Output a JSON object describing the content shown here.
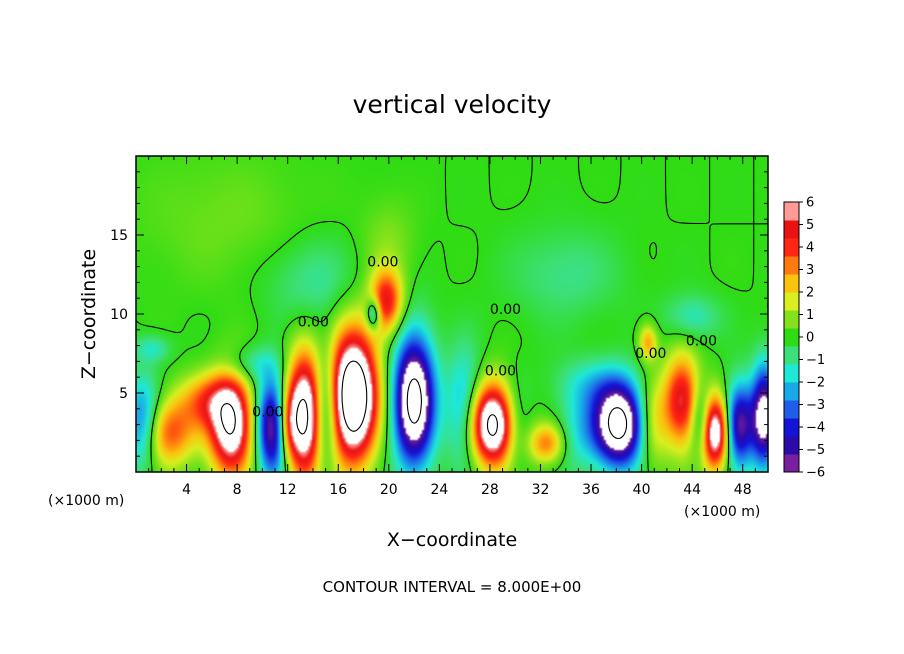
{
  "chart_data": {
    "type": "heatmap",
    "title": "vertical velocity",
    "xlabel": "X−coordinate",
    "ylabel": "Z−coordinate",
    "x_unit_label": "(×1000 m)",
    "x_unit_label_right": "(×1000 m)",
    "xlim": [
      0,
      50
    ],
    "ylim": [
      0,
      20
    ],
    "x_ticks": [
      4,
      8,
      12,
      16,
      20,
      24,
      28,
      32,
      36,
      40,
      44,
      48
    ],
    "y_ticks": [
      5,
      10,
      15
    ],
    "x_minor_step": 1,
    "y_minor_step": 1,
    "contour_interval_text": "CONTOUR INTERVAL = 8.000E+00",
    "contour_labels": [
      {
        "text": "0.00",
        "x": 12.8,
        "y": 9.2
      },
      {
        "text": "0.00",
        "x": 27.6,
        "y": 6.1
      },
      {
        "text": "0.00",
        "x": 28.0,
        "y": 10.0
      },
      {
        "text": "0.00",
        "x": 18.3,
        "y": 13.0
      },
      {
        "text": "0.00",
        "x": 9.2,
        "y": 3.5
      },
      {
        "text": "0.00",
        "x": 39.5,
        "y": 7.2
      },
      {
        "text": "0.00",
        "x": 43.5,
        "y": 8.0
      }
    ],
    "colorbar": {
      "min": -6,
      "max": 6,
      "ticks": [
        6,
        5,
        4,
        3,
        2,
        1,
        0,
        "−1",
        "−2",
        "−3",
        "−4",
        "−5",
        "−6"
      ],
      "colors": [
        "#7a1fa0",
        "#2a0aa8",
        "#1414d8",
        "#1f5ee8",
        "#19a8e8",
        "#1ee8d8",
        "#3ce07a",
        "#2fdc14",
        "#84e21c",
        "#d9ef1e",
        "#fbc20e",
        "#ff7a0e",
        "#ff2614",
        "#e81414",
        "#ff9a96"
      ]
    },
    "features": [
      {
        "x": 2.5,
        "z": 2.5,
        "w": 4.0,
        "sx": 1.6,
        "sz": 1.5
      },
      {
        "x": 7.5,
        "z": 3.0,
        "w": 8.0,
        "sx": 1.2,
        "sz": 2.2
      },
      {
        "x": 5.5,
        "z": 4.5,
        "w": 3.0,
        "sx": 1.5,
        "sz": 1.2
      },
      {
        "x": 0.5,
        "z": 3.0,
        "w": -4.0,
        "sx": 1.0,
        "sz": 2.0
      },
      {
        "x": 10.8,
        "z": 2.8,
        "w": -6.5,
        "sx": 0.9,
        "sz": 2.2
      },
      {
        "x": 13.3,
        "z": 3.5,
        "w": 8.5,
        "sx": 1.0,
        "sz": 2.8
      },
      {
        "x": 12.0,
        "z": 3.0,
        "w": 3.0,
        "sx": 0.6,
        "sz": 1.5
      },
      {
        "x": 15.0,
        "z": 4.0,
        "w": -3.5,
        "sx": 0.7,
        "sz": 2.5
      },
      {
        "x": 17.2,
        "z": 4.8,
        "w": 11.0,
        "sx": 1.3,
        "sz": 2.8
      },
      {
        "x": 19.8,
        "z": 10.8,
        "w": 5.0,
        "sx": 0.9,
        "sz": 1.4
      },
      {
        "x": 18.8,
        "z": 10.0,
        "w": -4.0,
        "sx": 0.4,
        "sz": 0.7
      },
      {
        "x": 22.0,
        "z": 4.5,
        "w": -9.0,
        "sx": 1.1,
        "sz": 2.8
      },
      {
        "x": 26.0,
        "z": 4.0,
        "w": -3.0,
        "sx": 1.0,
        "sz": 2.5
      },
      {
        "x": 28.2,
        "z": 3.0,
        "w": 9.0,
        "sx": 1.3,
        "sz": 1.8
      },
      {
        "x": 30.0,
        "z": 3.0,
        "w": -2.0,
        "sx": 0.8,
        "sz": 2.0
      },
      {
        "x": 32.5,
        "z": 1.8,
        "w": 3.5,
        "sx": 1.0,
        "sz": 0.9
      },
      {
        "x": 35.0,
        "z": 2.5,
        "w": -1.5,
        "sx": 1.2,
        "sz": 1.8
      },
      {
        "x": 38.2,
        "z": 3.0,
        "w": -9.0,
        "sx": 1.4,
        "sz": 1.8
      },
      {
        "x": 40.5,
        "z": 8.2,
        "w": 3.0,
        "sx": 0.5,
        "sz": 0.8
      },
      {
        "x": 40.8,
        "z": 3.0,
        "w": 2.5,
        "sx": 0.9,
        "sz": 2.0
      },
      {
        "x": 43.2,
        "z": 4.5,
        "w": 5.5,
        "sx": 1.0,
        "sz": 2.0
      },
      {
        "x": 44.7,
        "z": 3.2,
        "w": -3.5,
        "sx": 0.6,
        "sz": 1.5
      },
      {
        "x": 45.8,
        "z": 2.5,
        "w": 8.0,
        "sx": 0.8,
        "sz": 1.6
      },
      {
        "x": 47.7,
        "z": 3.0,
        "w": -6.0,
        "sx": 0.8,
        "sz": 1.8
      },
      {
        "x": 49.7,
        "z": 3.5,
        "w": -7.0,
        "sx": 0.7,
        "sz": 2.2
      },
      {
        "x": 1.3,
        "z": 7.8,
        "w": -1.5,
        "sx": 1.0,
        "sz": 0.6
      },
      {
        "x": 14.0,
        "z": 12.0,
        "w": -1.2,
        "sx": 2.5,
        "sz": 2.0
      },
      {
        "x": 34.0,
        "z": 12.5,
        "w": -1.0,
        "sx": 3.0,
        "sz": 2.0
      },
      {
        "x": 44.0,
        "z": 9.8,
        "w": -1.5,
        "sx": 1.5,
        "sz": 1.0
      },
      {
        "x": 9.0,
        "z": 6.8,
        "w": -1.5,
        "sx": 1.5,
        "sz": 0.8
      },
      {
        "x": 36.0,
        "z": 5.5,
        "w": -1.5,
        "sx": 2.0,
        "sz": 1.2
      },
      {
        "x": 20.0,
        "z": 14.5,
        "w": 0.8,
        "sx": 1.5,
        "sz": 2.0
      },
      {
        "x": 7.0,
        "z": 16.0,
        "w": 0.6,
        "sx": 5.0,
        "sz": 3.0
      }
    ]
  }
}
